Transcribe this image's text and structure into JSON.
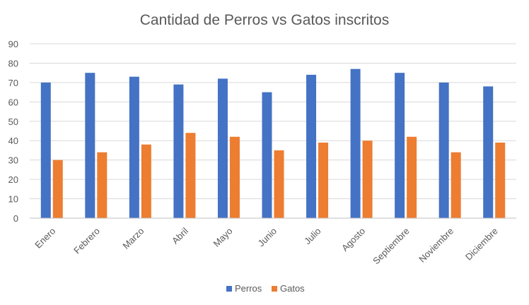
{
  "chart_data": {
    "type": "bar",
    "title": "Cantidad de Perros vs Gatos inscritos",
    "xlabel": "",
    "ylabel": "",
    "ylim": [
      0,
      90
    ],
    "ytick_step": 10,
    "grid": true,
    "legend_position": "bottom",
    "categories": [
      "Enero",
      "Febrero",
      "Marzo",
      "Abril",
      "Mayo",
      "Junio",
      "Julio",
      "Agosto",
      "Septiembre",
      "Noviembre",
      "Diciembre"
    ],
    "series": [
      {
        "name": "Perros",
        "color": "#4472c4",
        "values": [
          70,
          75,
          73,
          69,
          72,
          65,
          74,
          77,
          75,
          70,
          68
        ]
      },
      {
        "name": "Gatos",
        "color": "#ed7d31",
        "values": [
          30,
          34,
          38,
          44,
          42,
          35,
          39,
          40,
          42,
          34,
          39
        ]
      }
    ]
  }
}
